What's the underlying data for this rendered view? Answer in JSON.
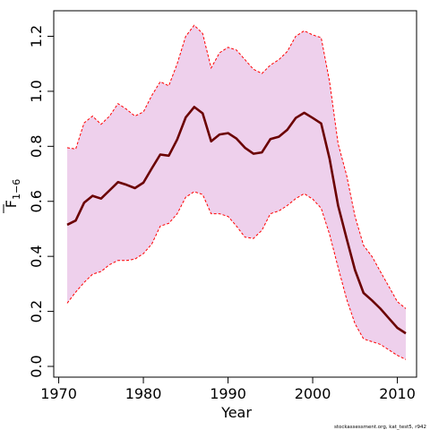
{
  "chart_data": {
    "type": "area",
    "title": "",
    "xlabel": "Year",
    "ylabel": {
      "text": "F",
      "subscript": "1−6",
      "overline": true
    },
    "xlim": [
      1970,
      2012
    ],
    "ylim": [
      0,
      1.28
    ],
    "xticks": [
      1970,
      1980,
      1990,
      2000,
      2010
    ],
    "yticks": [
      "0.0",
      "0.2",
      "0.4",
      "0.6",
      "0.8",
      "1.0",
      "1.2"
    ],
    "grid": false,
    "legend": "none",
    "colors": {
      "band_fill": "#eed0ec",
      "band_edge": "#ff0000",
      "line": "#6b0000"
    },
    "x": [
      1971,
      1972,
      1973,
      1974,
      1975,
      1976,
      1977,
      1978,
      1979,
      1980,
      1981,
      1982,
      1983,
      1984,
      1985,
      1986,
      1987,
      1988,
      1989,
      1990,
      1991,
      1992,
      1993,
      1994,
      1995,
      1996,
      1997,
      1998,
      1999,
      2000,
      2001,
      2002,
      2003,
      2004,
      2005,
      2006,
      2007,
      2008,
      2009,
      2010,
      2011
    ],
    "series": [
      {
        "role": "estimate",
        "values": [
          0.515,
          0.53,
          0.595,
          0.62,
          0.61,
          0.64,
          0.67,
          0.66,
          0.648,
          0.668,
          0.72,
          0.77,
          0.766,
          0.825,
          0.905,
          0.943,
          0.92,
          0.818,
          0.843,
          0.848,
          0.828,
          0.795,
          0.773,
          0.778,
          0.826,
          0.835,
          0.86,
          0.903,
          0.922,
          0.903,
          0.883,
          0.755,
          0.585,
          0.465,
          0.35,
          0.267,
          0.24,
          0.21,
          0.175,
          0.14,
          0.12
        ]
      },
      {
        "role": "upper",
        "values": [
          0.795,
          0.79,
          0.885,
          0.91,
          0.88,
          0.91,
          0.955,
          0.935,
          0.91,
          0.925,
          0.985,
          1.035,
          1.02,
          1.1,
          1.2,
          1.24,
          1.21,
          1.085,
          1.14,
          1.16,
          1.15,
          1.115,
          1.08,
          1.065,
          1.095,
          1.115,
          1.145,
          1.2,
          1.22,
          1.205,
          1.195,
          1.035,
          0.81,
          0.695,
          0.545,
          0.44,
          0.4,
          0.345,
          0.29,
          0.235,
          0.21
        ]
      },
      {
        "role": "lower",
        "values": [
          0.23,
          0.27,
          0.305,
          0.335,
          0.345,
          0.37,
          0.385,
          0.385,
          0.39,
          0.41,
          0.445,
          0.51,
          0.52,
          0.555,
          0.615,
          0.635,
          0.625,
          0.555,
          0.555,
          0.545,
          0.51,
          0.47,
          0.465,
          0.495,
          0.555,
          0.565,
          0.585,
          0.61,
          0.628,
          0.608,
          0.575,
          0.48,
          0.36,
          0.245,
          0.155,
          0.1,
          0.09,
          0.08,
          0.06,
          0.04,
          0.025
        ]
      }
    ]
  },
  "credit": "stockassessment.org, kat_test5, r942"
}
